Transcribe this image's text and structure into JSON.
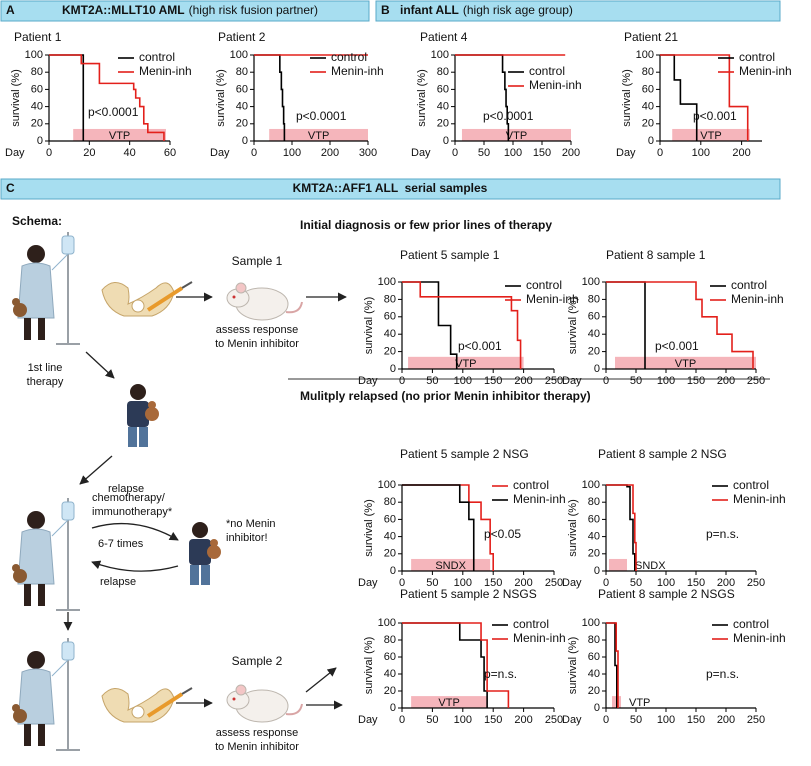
{
  "panels": {
    "A": {
      "letter": "A",
      "title_bold": "KMT2A::MLLT10 AML",
      "title_rest": "(high risk fusion partner)"
    },
    "B": {
      "letter": "B",
      "title_bold": "infant ALL",
      "title_rest": "(high risk age group)"
    },
    "C": {
      "letter": "C",
      "title": "KMT2A::AFF1 ALL  serial samples"
    }
  },
  "section_headings": [
    "Initial diagnosis or few prior lines of therapy",
    "Mulitply relapsed (no prior Menin inhibitor therapy)"
  ],
  "schema": {
    "title": "Schema:",
    "sample_1": "Sample 1",
    "note_1": [
      "assess response",
      "to Menin inhibitor"
    ],
    "first_line": [
      "1st line",
      "therapy"
    ],
    "relapse_1": "relapse",
    "chemo": [
      "chemotherapy/",
      "immunotherapy*"
    ],
    "repeat": "6-7 times",
    "relapse_2": "relapse",
    "no_menin": [
      "*no Menin",
      "inhibitor!"
    ],
    "sample_2": "Sample 2",
    "note_2": [
      "assess response",
      "to Menin inhibitor"
    ]
  },
  "chart_data": [
    {
      "type": "line",
      "step": true,
      "title": "Patient 1",
      "x_label": "Day",
      "y_label": "survival (%)",
      "xlim": [
        0,
        60
      ],
      "xticks": [
        0,
        20,
        40,
        60
      ],
      "ylim": [
        0,
        100
      ],
      "yticks": [
        0,
        20,
        40,
        60,
        80,
        100
      ],
      "series": [
        {
          "name": "control",
          "color": "#000000",
          "x": [
            0,
            17
          ],
          "values": [
            100,
            0
          ]
        },
        {
          "name": "Menin-inh",
          "color": "#e3201b",
          "x": [
            0,
            16,
            25,
            42,
            43,
            45,
            47,
            49,
            57
          ],
          "values": [
            100,
            90,
            67,
            60,
            50,
            40,
            20,
            10,
            0
          ]
        }
      ],
      "treatment": {
        "label": "VTP",
        "start": 12,
        "end": 58,
        "color": "#f5b5bb"
      },
      "annotation": "p<0.0001"
    },
    {
      "type": "line",
      "step": true,
      "title": "Patient 2",
      "x_label": "Day",
      "y_label": "survival (%)",
      "xlim": [
        0,
        300
      ],
      "xticks": [
        0,
        100,
        200,
        300
      ],
      "ylim": [
        0,
        100
      ],
      "yticks": [
        0,
        20,
        40,
        60,
        80,
        100
      ],
      "series": [
        {
          "name": "control",
          "color": "#000000",
          "x": [
            0,
            68,
            72,
            75,
            78,
            80
          ],
          "values": [
            100,
            80,
            60,
            40,
            20,
            0
          ]
        },
        {
          "name": "Menin-inh",
          "color": "#e3201b",
          "x": [
            0,
            300
          ],
          "values": [
            100,
            100
          ]
        }
      ],
      "treatment": {
        "label": "VTP",
        "start": 40,
        "end": 300,
        "color": "#f5b5bb"
      },
      "annotation": "p<0.0001"
    },
    {
      "type": "line",
      "step": true,
      "title": "Patient 4",
      "x_label": "Day",
      "y_label": "survival (%)",
      "xlim": [
        0,
        200
      ],
      "xticks": [
        0,
        50,
        100,
        150,
        200
      ],
      "ylim": [
        0,
        100
      ],
      "yticks": [
        0,
        20,
        40,
        60,
        80,
        100
      ],
      "series": [
        {
          "name": "control",
          "color": "#000000",
          "x": [
            0,
            82,
            86,
            88,
            90,
            92
          ],
          "values": [
            100,
            80,
            60,
            40,
            20,
            0
          ]
        },
        {
          "name": "Menin-inh",
          "color": "#e3201b",
          "x": [
            0,
            190
          ],
          "values": [
            100,
            100
          ]
        }
      ],
      "treatment": {
        "label": "VTP",
        "start": 12,
        "end": 200,
        "color": "#f5b5bb"
      },
      "annotation": "p<0.0001"
    },
    {
      "type": "line",
      "step": true,
      "title": "Patient 21",
      "x_label": "Day",
      "y_label": "survival (%)",
      "xlim": [
        0,
        250
      ],
      "xticks": [
        0,
        100,
        200
      ],
      "ylim": [
        0,
        100
      ],
      "yticks": [
        0,
        20,
        40,
        60,
        80,
        100
      ],
      "series": [
        {
          "name": "control",
          "color": "#000000",
          "x": [
            0,
            35,
            50,
            90
          ],
          "values": [
            100,
            71,
            43,
            0
          ]
        },
        {
          "name": "Menin-inh",
          "color": "#e3201b",
          "x": [
            0,
            170,
            215
          ],
          "values": [
            100,
            40,
            0
          ]
        }
      ],
      "treatment": {
        "label": "VTP",
        "start": 30,
        "end": 220,
        "color": "#f5b5bb"
      },
      "annotation": "p<0.001"
    },
    {
      "type": "line",
      "step": true,
      "title": "Patient 5 sample 1",
      "x_label": "Day",
      "y_label": "survival (%)",
      "xlim": [
        0,
        250
      ],
      "xticks": [
        0,
        50,
        100,
        150,
        200,
        250
      ],
      "ylim": [
        0,
        100
      ],
      "yticks": [
        0,
        20,
        40,
        60,
        80,
        100
      ],
      "series": [
        {
          "name": "control",
          "color": "#000000",
          "x": [
            0,
            60,
            80,
            90
          ],
          "values": [
            100,
            50,
            17,
            0
          ]
        },
        {
          "name": "Menin-inh",
          "color": "#e3201b",
          "x": [
            0,
            30,
            180,
            190,
            195
          ],
          "values": [
            100,
            83,
            67,
            33,
            0
          ]
        }
      ],
      "treatment": {
        "label": "VTP",
        "start": 10,
        "end": 200,
        "color": "#f5b5bb"
      },
      "annotation": "p<0.001"
    },
    {
      "type": "line",
      "step": true,
      "title": "Patient 8 sample 1",
      "x_label": "Day",
      "y_label": "survival (%)",
      "xlim": [
        0,
        250
      ],
      "xticks": [
        0,
        50,
        100,
        150,
        200,
        250
      ],
      "ylim": [
        0,
        100
      ],
      "yticks": [
        0,
        20,
        40,
        60,
        80,
        100
      ],
      "series": [
        {
          "name": "control",
          "color": "#000000",
          "x": [
            0,
            65
          ],
          "values": [
            100,
            0
          ]
        },
        {
          "name": "Menin-inh",
          "color": "#e3201b",
          "x": [
            0,
            150,
            160,
            185,
            210,
            245
          ],
          "values": [
            100,
            80,
            60,
            40,
            20,
            0
          ]
        }
      ],
      "treatment": {
        "label": "VTP",
        "start": 15,
        "end": 250,
        "color": "#f5b5bb"
      },
      "annotation": "p<0.001"
    },
    {
      "type": "line",
      "step": true,
      "title": "Patient 5 sample 2 NSG",
      "x_label": "Day",
      "y_label": "survival (%)",
      "xlim": [
        0,
        250
      ],
      "xticks": [
        0,
        50,
        100,
        150,
        200,
        250
      ],
      "ylim": [
        0,
        100
      ],
      "yticks": [
        0,
        20,
        40,
        60,
        80,
        100
      ],
      "series": [
        {
          "name": "control",
          "color": "#e3201b",
          "x": [
            0,
            110,
            130,
            145,
            150
          ],
          "values": [
            100,
            80,
            60,
            20,
            0
          ]
        },
        {
          "name": "Menin-inh",
          "color": "#000000",
          "x": [
            0,
            95,
            110,
            118
          ],
          "values": [
            100,
            80,
            60,
            0
          ]
        }
      ],
      "treatment": {
        "label": "SNDX",
        "start": 15,
        "end": 145,
        "color": "#f5b5bb"
      },
      "annotation": "p<0.05"
    },
    {
      "type": "line",
      "step": true,
      "title": "Patient 8 sample 2 NSG",
      "x_label": "Day",
      "y_label": "survival (%)",
      "xlim": [
        0,
        250
      ],
      "xticks": [
        0,
        50,
        100,
        150,
        200,
        250
      ],
      "ylim": [
        0,
        100
      ],
      "yticks": [
        0,
        20,
        40,
        60,
        80,
        100
      ],
      "series": [
        {
          "name": "control",
          "color": "#000000",
          "x": [
            0,
            35,
            40,
            45,
            48
          ],
          "values": [
            100,
            98,
            60,
            20,
            0
          ]
        },
        {
          "name": "Menin-inh",
          "color": "#e3201b",
          "x": [
            0,
            45,
            48,
            50
          ],
          "values": [
            100,
            67,
            33,
            0
          ]
        }
      ],
      "treatment": {
        "label": "SNDX",
        "start": 5,
        "end": 35,
        "color": "#f5b5bb"
      },
      "annotation": "p=n.s."
    },
    {
      "type": "line",
      "step": true,
      "title": "Patient 5 sample 2 NSGS",
      "x_label": "Day",
      "y_label": "survival (%)",
      "xlim": [
        0,
        250
      ],
      "xticks": [
        0,
        50,
        100,
        150,
        200,
        250
      ],
      "ylim": [
        0,
        100
      ],
      "yticks": [
        0,
        20,
        40,
        60,
        80,
        100
      ],
      "series": [
        {
          "name": "control",
          "color": "#000000",
          "x": [
            0,
            95,
            130,
            135,
            140
          ],
          "values": [
            100,
            80,
            60,
            20,
            0
          ]
        },
        {
          "name": "Menin-inh",
          "color": "#e3201b",
          "x": [
            0,
            130,
            140,
            175
          ],
          "values": [
            100,
            80,
            20,
            0
          ]
        }
      ],
      "treatment": {
        "label": "VTP",
        "start": 15,
        "end": 140,
        "color": "#f5b5bb"
      },
      "annotation": "p=n.s."
    },
    {
      "type": "line",
      "step": true,
      "title": "Patient 8 sample 2 NSGS",
      "x_label": "Day",
      "y_label": "survival (%)",
      "xlim": [
        0,
        250
      ],
      "xticks": [
        0,
        50,
        100,
        150,
        200,
        250
      ],
      "ylim": [
        0,
        100
      ],
      "yticks": [
        0,
        20,
        40,
        60,
        80,
        100
      ],
      "series": [
        {
          "name": "control",
          "color": "#000000",
          "x": [
            0,
            15,
            18
          ],
          "values": [
            100,
            50,
            0
          ]
        },
        {
          "name": "Menin-inh",
          "color": "#e3201b",
          "x": [
            0,
            17,
            20
          ],
          "values": [
            100,
            67,
            0
          ]
        }
      ],
      "treatment": {
        "label": "VTP",
        "start": 10,
        "end": 25,
        "color": "#f5b5bb"
      },
      "annotation": "p=n.s."
    }
  ]
}
